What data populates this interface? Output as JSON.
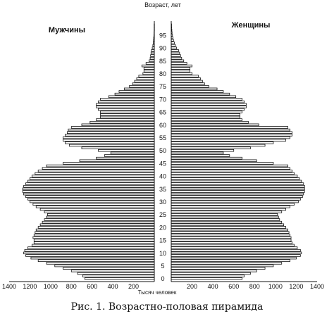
{
  "caption": "Рис. 1. Возрастно-половая пирамида",
  "chart_data": {
    "type": "bar",
    "orientation": "horizontal-pyramid",
    "title": "Возраст, лет",
    "xlabel": "Тысяч человек",
    "left_label": "Мужчины",
    "right_label": "Женщины",
    "age_ticks": [
      "0",
      "5",
      "10",
      "15",
      "20",
      "25",
      "30",
      "35",
      "40",
      "45",
      "50",
      "55",
      "60",
      "65",
      "70",
      "75",
      "80",
      "85",
      "90",
      "95"
    ],
    "x_ticks": [
      200,
      400,
      600,
      800,
      1000,
      1200,
      1400
    ],
    "xlim": [
      0,
      1400
    ],
    "ages": [
      0,
      1,
      2,
      3,
      4,
      5,
      6,
      7,
      8,
      9,
      10,
      11,
      12,
      13,
      14,
      15,
      16,
      17,
      18,
      19,
      20,
      21,
      22,
      23,
      24,
      25,
      26,
      27,
      28,
      29,
      30,
      31,
      32,
      33,
      34,
      35,
      36,
      37,
      38,
      39,
      40,
      41,
      42,
      43,
      44,
      45,
      46,
      47,
      48,
      49,
      50,
      51,
      52,
      53,
      54,
      55,
      56,
      57,
      58,
      59,
      60,
      61,
      62,
      63,
      64,
      65,
      66,
      67,
      68,
      69,
      70,
      71,
      72,
      73,
      74,
      75,
      76,
      77,
      78,
      79,
      80,
      81,
      82,
      83,
      84,
      85,
      86,
      87,
      88,
      89,
      90,
      91,
      92,
      93,
      94,
      95,
      96,
      97,
      98,
      99
    ],
    "series": [
      {
        "name": "Мужчины",
        "values": [
          670,
          690,
          740,
          800,
          880,
          960,
          1040,
          1120,
          1190,
          1240,
          1260,
          1250,
          1220,
          1180,
          1160,
          1160,
          1170,
          1160,
          1150,
          1140,
          1120,
          1100,
          1080,
          1060,
          1040,
          1030,
          1060,
          1100,
          1140,
          1170,
          1200,
          1220,
          1240,
          1260,
          1270,
          1270,
          1260,
          1240,
          1220,
          1200,
          1180,
          1150,
          1120,
          1080,
          1040,
          880,
          720,
          560,
          480,
          420,
          540,
          700,
          820,
          860,
          880,
          880,
          860,
          840,
          830,
          800,
          700,
          620,
          560,
          520,
          520,
          520,
          540,
          560,
          560,
          540,
          520,
          440,
          380,
          340,
          290,
          240,
          210,
          190,
          170,
          150,
          110,
          100,
          100,
          120,
          80,
          50,
          40,
          36,
          32,
          28,
          20,
          14,
          10,
          8,
          6,
          4,
          3,
          2,
          2,
          2
        ]
      },
      {
        "name": "Женщины",
        "values": [
          680,
          700,
          760,
          820,
          900,
          980,
          1060,
          1140,
          1200,
          1240,
          1250,
          1240,
          1210,
          1180,
          1160,
          1150,
          1150,
          1140,
          1130,
          1120,
          1100,
          1080,
          1060,
          1040,
          1030,
          1020,
          1060,
          1100,
          1140,
          1180,
          1220,
          1240,
          1260,
          1270,
          1280,
          1280,
          1280,
          1270,
          1250,
          1230,
          1210,
          1180,
          1160,
          1140,
          1120,
          980,
          820,
          680,
          560,
          500,
          600,
          760,
          900,
          980,
          1100,
          1140,
          1160,
          1160,
          1140,
          1120,
          840,
          740,
          680,
          660,
          660,
          680,
          700,
          720,
          720,
          700,
          680,
          620,
          560,
          500,
          440,
          360,
          320,
          300,
          280,
          260,
          200,
          180,
          180,
          200,
          150,
          120,
          100,
          90,
          80,
          70,
          50,
          40,
          30,
          22,
          16,
          12,
          8,
          6,
          4,
          3
        ]
      }
    ],
    "grid": false,
    "legend": "none"
  }
}
